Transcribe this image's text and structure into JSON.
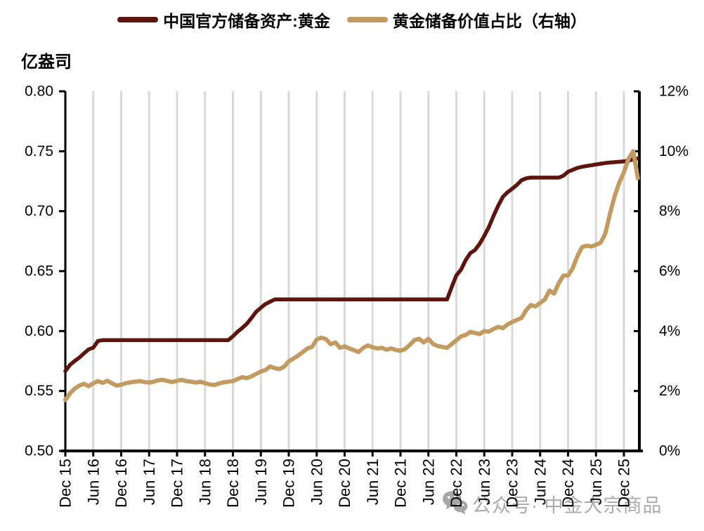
{
  "left_axis_unit": "亿盎司",
  "watermark": {
    "icon": "wechat-icon",
    "text": "公众号· 中金大宗商品"
  },
  "chart_data": {
    "type": "line",
    "title": "",
    "legend_position": "top",
    "grid": "vertical-only",
    "grid_color": "#D9D9D9",
    "axis_color": "#000000",
    "months_per_tick": 6,
    "x_tick_labels": [
      "Dec 15",
      "Jun 16",
      "Dec 16",
      "Jun 17",
      "Dec 17",
      "Jun 18",
      "Dec 18",
      "Jun 19",
      "Dec 19",
      "Jun 20",
      "Dec 20",
      "Jun 21",
      "Dec 21",
      "Jun 22",
      "Dec 22",
      "Jun 23",
      "Dec 23",
      "Jun 24",
      "Dec 24",
      "Jun 25",
      "Dec 25"
    ],
    "left_axis": {
      "unit": "亿盎司",
      "min": 0.5,
      "max": 0.8,
      "tick_values": [
        0.8,
        0.75,
        0.7,
        0.65,
        0.6,
        0.55,
        0.5
      ],
      "tick_labels": [
        "0.80",
        "0.75",
        "0.70",
        "0.65",
        "0.60",
        "0.55",
        "0.50"
      ]
    },
    "right_axis": {
      "unit": "%",
      "min": 0,
      "max": 12,
      "tick_values": [
        12,
        10,
        8,
        6,
        4,
        2,
        0
      ],
      "tick_labels": [
        "12%",
        "10%",
        "8%",
        "6%",
        "4%",
        "2%",
        "0%"
      ]
    },
    "series": [
      {
        "id": "gold-reserves",
        "name": "中国官方储备资产:黄金",
        "axis": "left",
        "color": "#5E150E",
        "values": [
          0.5666,
          0.5718,
          0.575,
          0.5779,
          0.5814,
          0.5847,
          0.5862,
          0.5917,
          0.5924,
          0.5924,
          0.5924,
          0.5924,
          0.5924,
          0.5924,
          0.5924,
          0.5924,
          0.5924,
          0.5924,
          0.5924,
          0.5924,
          0.5924,
          0.5924,
          0.5924,
          0.5924,
          0.5924,
          0.5924,
          0.5924,
          0.5924,
          0.5924,
          0.5924,
          0.5924,
          0.5924,
          0.5924,
          0.5924,
          0.5924,
          0.5924,
          0.5956,
          0.5994,
          0.6026,
          0.6062,
          0.611,
          0.6161,
          0.6194,
          0.6226,
          0.6245,
          0.6264,
          0.6264,
          0.6264,
          0.6264,
          0.6264,
          0.6264,
          0.6264,
          0.6264,
          0.6264,
          0.6264,
          0.6264,
          0.6264,
          0.6264,
          0.6264,
          0.6264,
          0.6264,
          0.6264,
          0.6264,
          0.6264,
          0.6264,
          0.6264,
          0.6264,
          0.6264,
          0.6264,
          0.6264,
          0.6264,
          0.6264,
          0.6264,
          0.6264,
          0.6264,
          0.6264,
          0.6264,
          0.6264,
          0.6264,
          0.6264,
          0.6264,
          0.6264,
          0.6264,
          0.6367,
          0.6464,
          0.6512,
          0.6592,
          0.665,
          0.6676,
          0.6727,
          0.6795,
          0.6869,
          0.6962,
          0.7046,
          0.712,
          0.7158,
          0.7187,
          0.7219,
          0.7258,
          0.7274,
          0.728,
          0.728,
          0.728,
          0.728,
          0.728,
          0.728,
          0.728,
          0.7296,
          0.7329,
          0.7345,
          0.7361,
          0.737,
          0.7377,
          0.7383,
          0.739,
          0.7396,
          0.7402,
          0.7406,
          0.7409,
          0.7412,
          0.7415,
          0.7422,
          0.7432,
          0.744
        ]
      },
      {
        "id": "gold-share",
        "name": "黄金储备价值占比（右轴）",
        "axis": "right",
        "color": "#C39B61",
        "values": [
          1.7,
          1.92,
          2.08,
          2.18,
          2.24,
          2.16,
          2.26,
          2.33,
          2.27,
          2.34,
          2.26,
          2.18,
          2.21,
          2.26,
          2.29,
          2.31,
          2.33,
          2.3,
          2.28,
          2.31,
          2.36,
          2.37,
          2.33,
          2.3,
          2.34,
          2.37,
          2.33,
          2.31,
          2.28,
          2.31,
          2.26,
          2.22,
          2.2,
          2.25,
          2.29,
          2.31,
          2.33,
          2.4,
          2.46,
          2.43,
          2.49,
          2.57,
          2.65,
          2.7,
          2.82,
          2.76,
          2.73,
          2.81,
          2.99,
          3.08,
          3.18,
          3.3,
          3.42,
          3.47,
          3.72,
          3.78,
          3.73,
          3.56,
          3.62,
          3.44,
          3.49,
          3.42,
          3.36,
          3.3,
          3.44,
          3.52,
          3.46,
          3.42,
          3.44,
          3.38,
          3.42,
          3.37,
          3.34,
          3.4,
          3.54,
          3.7,
          3.74,
          3.62,
          3.74,
          3.57,
          3.5,
          3.47,
          3.44,
          3.57,
          3.69,
          3.82,
          3.87,
          3.97,
          3.94,
          3.9,
          4.0,
          3.98,
          4.07,
          4.14,
          4.1,
          4.22,
          4.3,
          4.37,
          4.44,
          4.7,
          4.87,
          4.82,
          4.94,
          5.05,
          5.35,
          5.25,
          5.6,
          5.85,
          5.85,
          6.1,
          6.5,
          6.8,
          6.85,
          6.82,
          6.88,
          6.95,
          7.25,
          7.9,
          8.5,
          8.95,
          9.3,
          9.75,
          10.0,
          9.1
        ]
      }
    ]
  }
}
